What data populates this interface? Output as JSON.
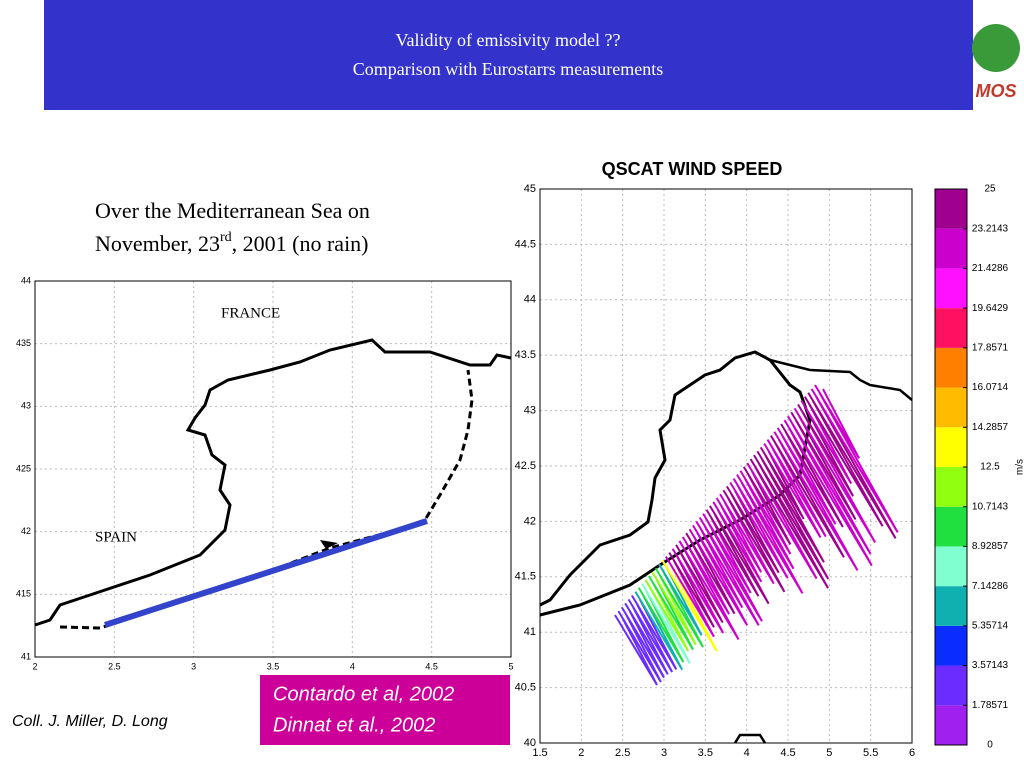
{
  "header": {
    "title_line1": "Validity of emissivity model ??",
    "title_line2": "Comparison with Eurostarrs  measurements",
    "logo_text": "MOS"
  },
  "intro": {
    "line1": "Over the Mediterranean Sea on",
    "line2_a": "November, 23",
    "line2_sup": "rd",
    "line2_b": ",  2001 (no rain)"
  },
  "left_map": {
    "xlim": [
      2,
      5
    ],
    "ylim": [
      41,
      44
    ],
    "xticks": [
      2,
      2.5,
      3,
      3.5,
      4,
      4.5,
      5
    ],
    "yticks": [
      41,
      {
        "value": 41.5,
        "label": "415"
      },
      42,
      {
        "value": 42.5,
        "label": "425"
      },
      43,
      {
        "value": 43.5,
        "label": "435"
      },
      44
    ],
    "label_france": "FRANCE",
    "label_spain": "SPAIN"
  },
  "right_map": {
    "title": "QSCAT WIND SPEED",
    "xlim": [
      1.5,
      6
    ],
    "ylim": [
      40,
      45
    ],
    "xticks": [
      1.5,
      2,
      2.5,
      3,
      3.5,
      4,
      4.5,
      5,
      5.5,
      6
    ],
    "yticks": [
      40,
      40.5,
      41,
      41.5,
      42,
      42.5,
      43,
      43.5,
      44,
      44.5,
      45
    ]
  },
  "colorbar": {
    "unit": "m/s",
    "ticks": [
      0,
      1.78571,
      3.57143,
      5.35714,
      7.14286,
      8.92857,
      10.7143,
      12.5,
      14.2857,
      16.0714,
      17.8571,
      19.6429,
      21.4286,
      23.2143,
      25
    ],
    "colors": [
      "#a020f0",
      "#6a2cff",
      "#0a2cff",
      "#10b0b0",
      "#80ffd0",
      "#20e040",
      "#90ff10",
      "#ffff00",
      "#ffbb00",
      "#ff8000",
      "#ff1060",
      "#ff10ff",
      "#cc00cc",
      "#a00090"
    ]
  },
  "references": {
    "line1": "Contardo et al, 2002",
    "line2": "Dinnat et al., 2002"
  },
  "credit": "Coll. J. Miller, D. Long"
}
